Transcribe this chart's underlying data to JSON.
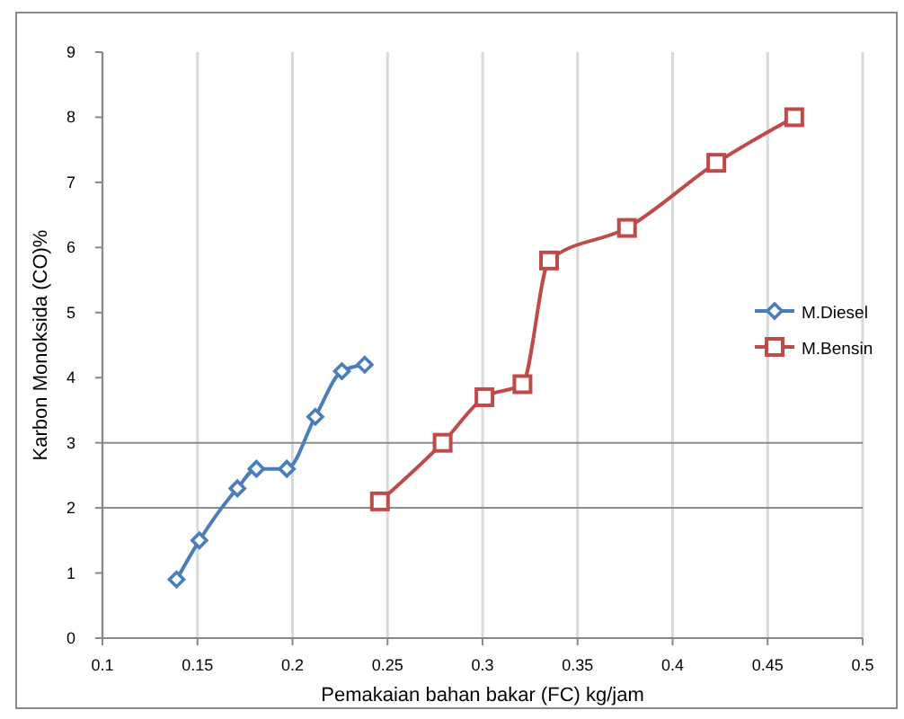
{
  "chart_data": {
    "type": "line",
    "xlabel": "Pemakaian bahan bakar (FC) kg/jam",
    "ylabel": "Karbon Monoksida (CO)%",
    "xlim": [
      0.1,
      0.5
    ],
    "xticks": [
      0.1,
      0.15,
      0.2,
      0.25,
      0.3,
      0.35,
      0.4,
      0.45,
      0.5
    ],
    "ylim": [
      0,
      9
    ],
    "yticks": [
      0,
      1,
      2,
      3,
      4,
      5,
      6,
      7,
      8,
      9
    ],
    "grid": "x",
    "legend": "right",
    "line_style": "solid",
    "ref_lines": [
      {
        "axis": "y",
        "value": 2,
        "color": "#8c8c8c"
      },
      {
        "axis": "y",
        "value": 3,
        "color": "#8c8c8c"
      }
    ],
    "series": [
      {
        "name": "M.Diesel",
        "color": "#4a7ebb",
        "marker": "diamond",
        "x": [
          0.139,
          0.151,
          0.171,
          0.181,
          0.197,
          0.212,
          0.226,
          0.238
        ],
        "values": [
          0.9,
          1.5,
          2.3,
          2.6,
          2.6,
          3.4,
          4.1,
          4.2
        ]
      },
      {
        "name": "M.Bensin",
        "color": "#be4b48",
        "marker": "square",
        "x": [
          0.246,
          0.279,
          0.301,
          0.321,
          0.335,
          0.376,
          0.423,
          0.464
        ],
        "values": [
          2.1,
          3.0,
          3.7,
          3.9,
          5.8,
          6.3,
          7.3,
          8.0
        ]
      }
    ]
  }
}
